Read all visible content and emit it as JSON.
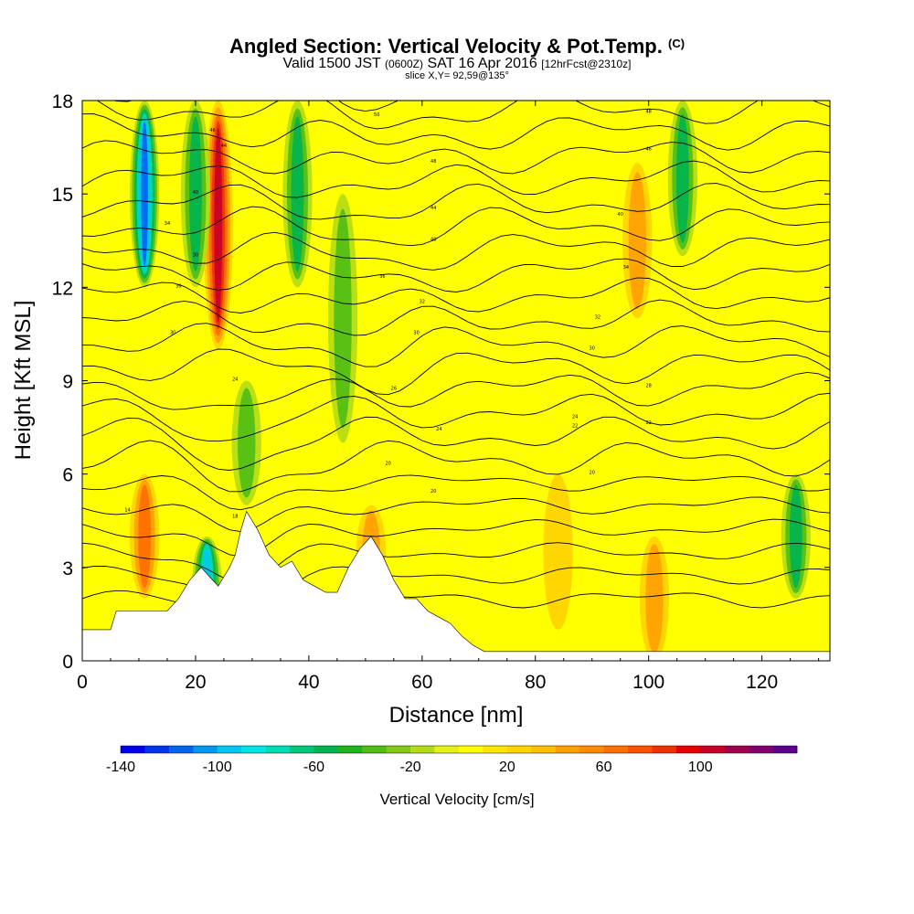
{
  "header": {
    "title": "Angled Section: Vertical Velocity & Pot.Temp.",
    "title_tag": "(C)",
    "valid_prefix": "Valid 1500 JST",
    "valid_utc": "(0600Z)",
    "valid_date": "SAT 16 Apr 2016",
    "forecast": "[12hrFcst@2310z]",
    "slice": "slice X,Y= 92,59@135°"
  },
  "chart_data": {
    "type": "heatmap",
    "title": "Angled Section: Vertical Velocity & Pot.Temp.",
    "xlabel": "Distance [nm]",
    "ylabel": "Height [Kft MSL]",
    "xlim": [
      0,
      132
    ],
    "ylim": [
      0,
      18
    ],
    "x_ticks": [
      0,
      20,
      40,
      60,
      80,
      100,
      120
    ],
    "y_ticks": [
      0,
      3,
      6,
      9,
      12,
      15,
      18
    ],
    "colorbar": {
      "label": "Vertical Velocity [cm/s]",
      "range": [
        -140,
        140
      ],
      "step": 10,
      "tick_labels": [
        -140,
        -100,
        -60,
        -20,
        20,
        60,
        100
      ],
      "colors": [
        "#0000ee",
        "#0033f0",
        "#0066f0",
        "#0099f0",
        "#00c8f0",
        "#00e6e6",
        "#00dcb4",
        "#00c878",
        "#00b450",
        "#1eb41e",
        "#50be14",
        "#82c814",
        "#b4dc14",
        "#e6f014",
        "#ffff00",
        "#ffe600",
        "#ffd200",
        "#ffbe00",
        "#ffa000",
        "#ff8c00",
        "#ff6e00",
        "#ff5000",
        "#f03200",
        "#e60000",
        "#c80028",
        "#a0004b",
        "#82006e",
        "#5a008c"
      ]
    },
    "terrain_kft": {
      "x": [
        0,
        5,
        6,
        11,
        15,
        17,
        19,
        21,
        23,
        24,
        26,
        27,
        28,
        29,
        31,
        33,
        35,
        37,
        39,
        41,
        43,
        45,
        47,
        49,
        51,
        53,
        55,
        57,
        59,
        61,
        63,
        65,
        67,
        69,
        71,
        132
      ],
      "y": [
        1,
        1,
        1.6,
        1.6,
        1.6,
        2.0,
        2.6,
        3.0,
        2.6,
        2.4,
        3.0,
        3.4,
        4.2,
        4.8,
        4.2,
        3.4,
        3.0,
        3.2,
        2.6,
        2.4,
        2.2,
        2.2,
        3.0,
        3.6,
        4.0,
        3.4,
        2.6,
        2.0,
        2.0,
        1.6,
        1.4,
        1.2,
        0.8,
        0.5,
        0.3,
        0.3
      ]
    },
    "updraft_columns": [
      {
        "x": 11,
        "w": 60,
        "z": [
          2,
          6
        ]
      },
      {
        "x": 24,
        "w": 110,
        "z": [
          10,
          18
        ]
      },
      {
        "x": 51,
        "w": 40,
        "z": [
          2,
          5
        ]
      },
      {
        "x": 84,
        "w": 30,
        "z": [
          1,
          6
        ]
      },
      {
        "x": 98,
        "w": 50,
        "z": [
          11,
          16
        ]
      },
      {
        "x": 101,
        "w": 40,
        "z": [
          0,
          4
        ]
      }
    ],
    "downdraft_columns": [
      {
        "x": 11,
        "w": -120,
        "z": [
          12,
          18
        ]
      },
      {
        "x": 20,
        "w": -60,
        "z": [
          12,
          18
        ]
      },
      {
        "x": 22,
        "w": -110,
        "z": [
          1,
          4
        ]
      },
      {
        "x": 29,
        "w": -40,
        "z": [
          5,
          9
        ]
      },
      {
        "x": 38,
        "w": -60,
        "z": [
          12,
          18
        ]
      },
      {
        "x": 46,
        "w": -50,
        "z": [
          7,
          15
        ]
      },
      {
        "x": 106,
        "w": -60,
        "z": [
          13,
          18
        ]
      },
      {
        "x": 126,
        "w": -60,
        "z": [
          2,
          6
        ]
      }
    ],
    "contour_labels": [
      {
        "x": 23,
        "z": 17,
        "t": "46"
      },
      {
        "x": 25,
        "z": 16.5,
        "t": "44"
      },
      {
        "x": 20,
        "z": 15,
        "t": "40"
      },
      {
        "x": 15,
        "z": 14,
        "t": "34"
      },
      {
        "x": 20,
        "z": 13,
        "t": "30"
      },
      {
        "x": 17,
        "z": 12,
        "t": "30"
      },
      {
        "x": 16,
        "z": 10.5,
        "t": "30"
      },
      {
        "x": 27,
        "z": 9,
        "t": "24"
      },
      {
        "x": 8,
        "z": 4.8,
        "t": "14"
      },
      {
        "x": 27,
        "z": 4.6,
        "t": "18"
      },
      {
        "x": 52,
        "z": 17.5,
        "t": "50"
      },
      {
        "x": 62,
        "z": 16,
        "t": "48"
      },
      {
        "x": 62,
        "z": 14.5,
        "t": "44"
      },
      {
        "x": 62,
        "z": 13.5,
        "t": "40"
      },
      {
        "x": 53,
        "z": 12.3,
        "t": "36"
      },
      {
        "x": 60,
        "z": 11.5,
        "t": "32"
      },
      {
        "x": 59,
        "z": 10.5,
        "t": "30"
      },
      {
        "x": 55,
        "z": 8.7,
        "t": "26"
      },
      {
        "x": 63,
        "z": 7.4,
        "t": "24"
      },
      {
        "x": 54,
        "z": 6.3,
        "t": "20"
      },
      {
        "x": 62,
        "z": 5.4,
        "t": "20"
      },
      {
        "x": 100,
        "z": 17.6,
        "t": "48"
      },
      {
        "x": 100,
        "z": 16.4,
        "t": "46"
      },
      {
        "x": 95,
        "z": 14.3,
        "t": "40"
      },
      {
        "x": 96,
        "z": 12.6,
        "t": "34"
      },
      {
        "x": 91,
        "z": 11,
        "t": "32"
      },
      {
        "x": 90,
        "z": 10,
        "t": "30"
      },
      {
        "x": 100,
        "z": 8.8,
        "t": "28"
      },
      {
        "x": 87,
        "z": 7.8,
        "t": "24"
      },
      {
        "x": 87,
        "z": 7.5,
        "t": "22"
      },
      {
        "x": 100,
        "z": 7.6,
        "t": "22"
      },
      {
        "x": 90,
        "z": 6.0,
        "t": "20"
      }
    ]
  }
}
